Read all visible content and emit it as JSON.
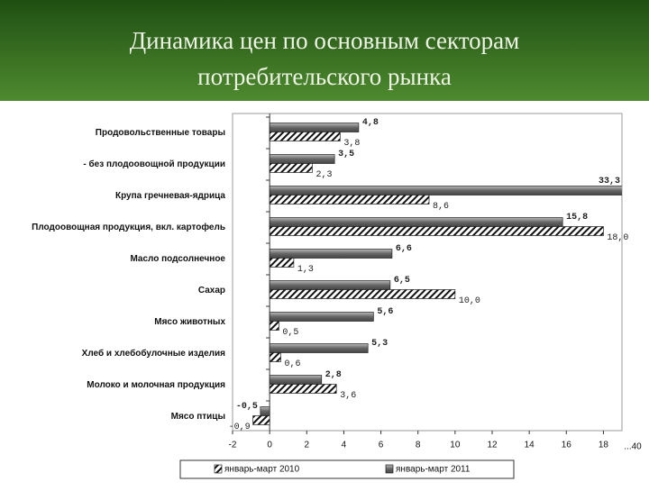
{
  "chart_data": {
    "type": "barh",
    "title": [
      "Динамика цен по основным секторам",
      "потребительского рынка"
    ],
    "categories": [
      "Продовольственные товары",
      "- без плодоовощной продукции",
      "Крупа гречневая-ядрица",
      "Плодоовощная продукция, вкл. картофель",
      "Масло подсолнечное",
      "Сахар",
      "Мясо животных",
      "Хлеб и хлебобулочные изделия",
      "Молоко и молочная продукция",
      "Мясо птицы"
    ],
    "series": [
      {
        "name": "январь-март 2011",
        "color": "#777777",
        "values": [
          4.8,
          3.5,
          33.3,
          15.8,
          6.6,
          6.5,
          5.6,
          5.3,
          2.8,
          -0.5
        ],
        "value_labels": [
          "4,8",
          "3,5",
          "33,3",
          "15,8",
          "6,6",
          "6,5",
          "5,6",
          "5,3",
          "2,8",
          "-0,5"
        ]
      },
      {
        "name": "январь-март 2010",
        "color": "hatch",
        "values": [
          3.8,
          2.3,
          8.6,
          18.0,
          1.3,
          10.0,
          0.5,
          0.6,
          3.6,
          -0.9
        ],
        "value_labels": [
          "3,8",
          "2,3",
          "8,6",
          "18,0",
          "1,3",
          "10,0",
          "0,5",
          "0,6",
          "3,6",
          "-0,9"
        ]
      }
    ],
    "xlim": [
      -2,
      19
    ],
    "xticks": [
      -2,
      0,
      2,
      4,
      6,
      8,
      10,
      12,
      14,
      16,
      18
    ],
    "axis_end_label": "...40"
  }
}
